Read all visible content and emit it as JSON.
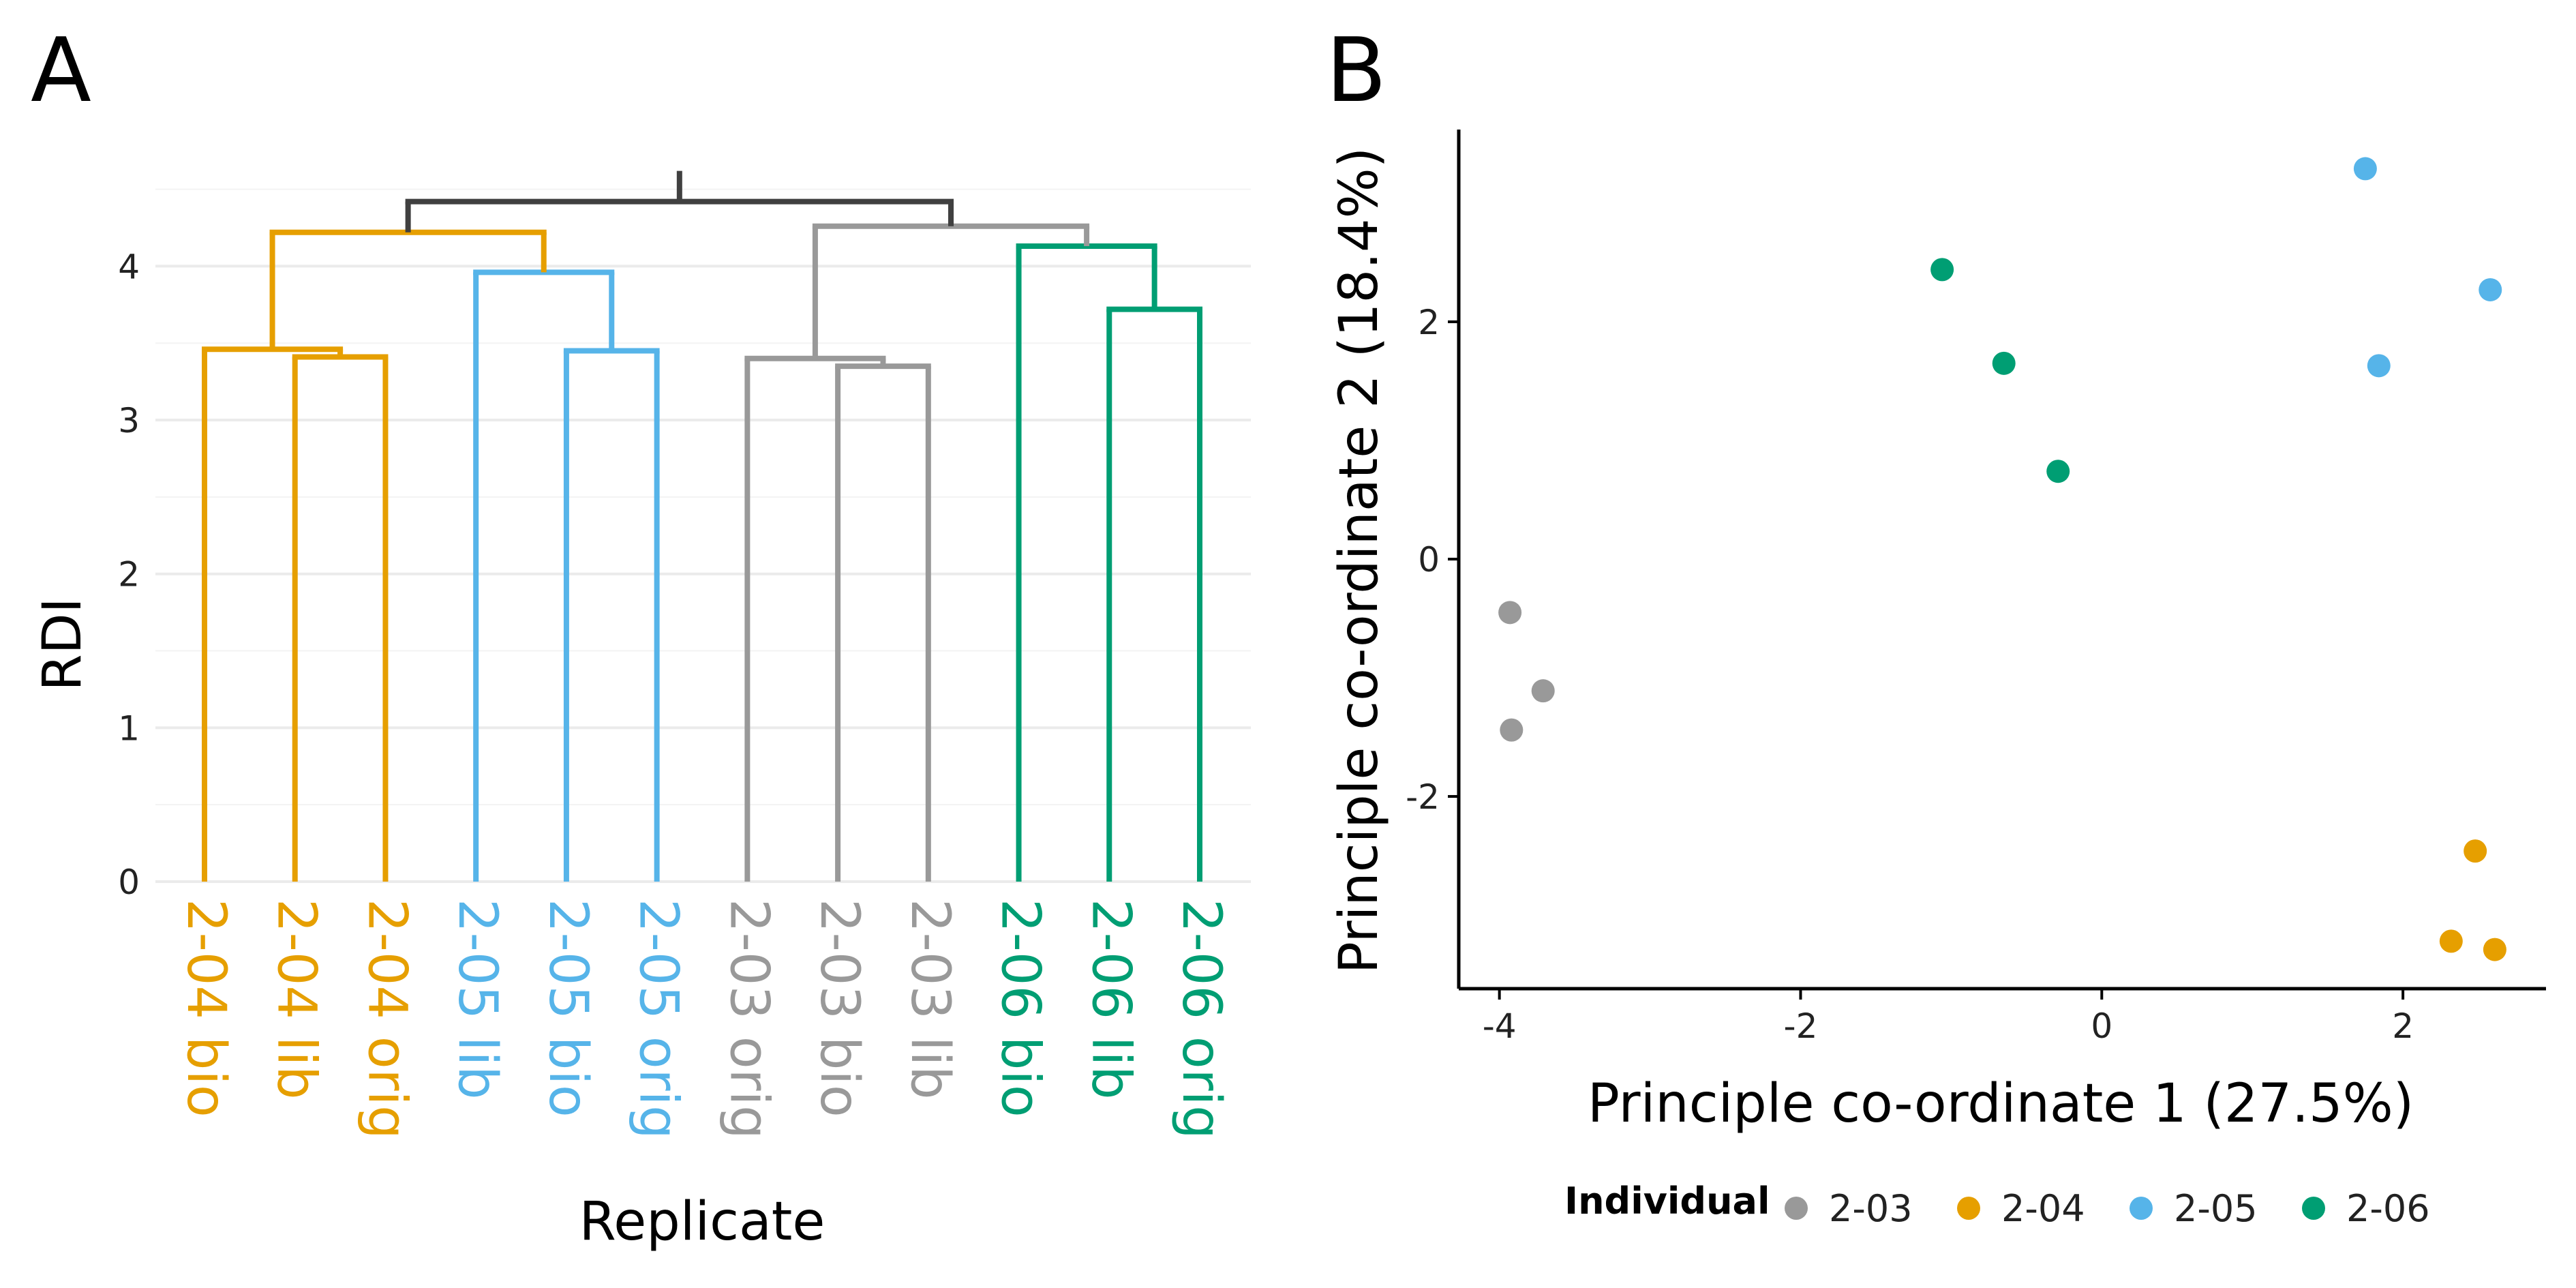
{
  "colors": {
    "2-03": "#999999",
    "2-04": "#E69F00",
    "2-05": "#56B4E9",
    "2-06": "#009E73",
    "root": "#404040",
    "grid": "#ebebeb",
    "axis": "#000000"
  },
  "chart_data": [
    {
      "type": "dendrogram",
      "panel_label": "A",
      "xlabel": "Replicate",
      "ylabel": "RDI",
      "ylim": [
        0,
        4.6
      ],
      "yticks": [
        0,
        1,
        2,
        3,
        4
      ],
      "grid": true,
      "leaves": [
        {
          "label": "2-04 bio",
          "group": "2-04"
        },
        {
          "label": "2-04 lib",
          "group": "2-04"
        },
        {
          "label": "2-04 orig",
          "group": "2-04"
        },
        {
          "label": "2-05 lib",
          "group": "2-05"
        },
        {
          "label": "2-05 bio",
          "group": "2-05"
        },
        {
          "label": "2-05 orig",
          "group": "2-05"
        },
        {
          "label": "2-03 orig",
          "group": "2-03"
        },
        {
          "label": "2-03 bio",
          "group": "2-03"
        },
        {
          "label": "2-03 lib",
          "group": "2-03"
        },
        {
          "label": "2-06 bio",
          "group": "2-06"
        },
        {
          "label": "2-06 lib",
          "group": "2-06"
        },
        {
          "label": "2-06 orig",
          "group": "2-06"
        }
      ],
      "merges": [
        {
          "id": "m1",
          "left": 1,
          "right": 2,
          "height": 3.41,
          "group": "2-04"
        },
        {
          "id": "m2",
          "left": 0,
          "right": "m1",
          "height": 3.46,
          "group": "2-04"
        },
        {
          "id": "m3",
          "left": 4,
          "right": 5,
          "height": 3.45,
          "group": "2-05"
        },
        {
          "id": "m4",
          "left": 3,
          "right": "m3",
          "height": 3.96,
          "group": "2-05"
        },
        {
          "id": "m5",
          "left": "m2",
          "right": "m4",
          "height": 4.22,
          "group": "2-04"
        },
        {
          "id": "m6",
          "left": 7,
          "right": 8,
          "height": 3.35,
          "group": "2-03"
        },
        {
          "id": "m7",
          "left": 6,
          "right": "m6",
          "height": 3.4,
          "group": "2-03"
        },
        {
          "id": "m8",
          "left": 10,
          "right": 11,
          "height": 3.72,
          "group": "2-06"
        },
        {
          "id": "m9",
          "left": 9,
          "right": "m8",
          "height": 4.13,
          "group": "2-06"
        },
        {
          "id": "m10",
          "left": "m7",
          "right": "m9",
          "height": 4.26,
          "group": "2-03"
        },
        {
          "id": "m11",
          "left": "m5",
          "right": "m10",
          "height": 4.42,
          "group": "root"
        }
      ]
    },
    {
      "type": "scatter",
      "panel_label": "B",
      "xlabel": "Principle co-ordinate 1 (27.5%)",
      "ylabel": "Principle co-ordinate 2 (18.4%)",
      "xlim": [
        -4.27,
        2.95
      ],
      "ylim": [
        -3.62,
        3.62
      ],
      "xticks": [
        -4,
        -2,
        0,
        2
      ],
      "yticks": [
        -2,
        0,
        2
      ],
      "grid": false,
      "legend_position": "bottom",
      "legend_title": "Individual",
      "series": [
        {
          "name": "2-03",
          "points": [
            [
              -3.93,
              -0.45
            ],
            [
              -3.71,
              -1.11
            ],
            [
              -3.92,
              -1.44
            ]
          ]
        },
        {
          "name": "2-04",
          "points": [
            [
              2.48,
              -2.46
            ],
            [
              2.32,
              -3.22
            ],
            [
              2.61,
              -3.29
            ]
          ]
        },
        {
          "name": "2-05",
          "points": [
            [
              1.75,
              3.29
            ],
            [
              2.58,
              2.27
            ],
            [
              1.84,
              1.63
            ]
          ]
        },
        {
          "name": "2-06",
          "points": [
            [
              -1.06,
              2.44
            ],
            [
              -0.65,
              1.65
            ],
            [
              -0.29,
              0.74
            ]
          ]
        }
      ]
    }
  ]
}
